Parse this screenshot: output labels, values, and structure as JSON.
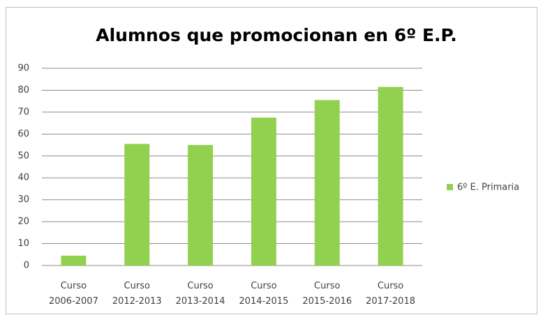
{
  "chart_data": {
    "type": "bar",
    "title": "Alumnos que promocionan en 6º E.P.",
    "categories": [
      "Curso 2006-2007",
      "Curso 2012-2013",
      "Curso 2013-2014",
      "Curso 2014-2015",
      "Curso 2015-2016",
      "Curso 2017-2018"
    ],
    "series": [
      {
        "name": "6º E. Primaria",
        "color": "#92d050",
        "values": [
          4.5,
          55.5,
          55,
          67.5,
          75.5,
          81.5
        ]
      }
    ],
    "ylim": [
      0,
      90
    ],
    "yticks": [
      0,
      10,
      20,
      30,
      40,
      50,
      60,
      70,
      80,
      90
    ],
    "grid": true,
    "legend": "right"
  }
}
